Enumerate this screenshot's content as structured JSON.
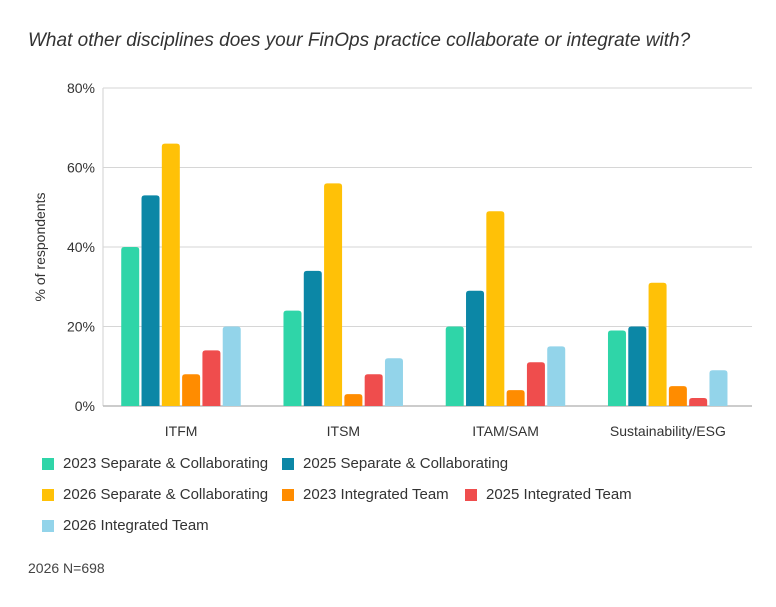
{
  "chart_data": {
    "type": "bar",
    "title": "What other disciplines does your FinOps practice collaborate or integrate with?",
    "xlabel": "",
    "ylabel": "% of respondents",
    "ylim": [
      0,
      80
    ],
    "yticks": [
      "0%",
      "20%",
      "40%",
      "60%",
      "80%"
    ],
    "grid": true,
    "legend_position": "bottom",
    "categories": [
      "ITFM",
      "ITSM",
      "ITAM/SAM",
      "Sustainability/ESG"
    ],
    "series": [
      {
        "name": "2023 Separate & Collaborating",
        "color": "#2fd5a8",
        "values": [
          40,
          24,
          20,
          19
        ]
      },
      {
        "name": "2025 Separate & Collaborating",
        "color": "#0c87a6",
        "values": [
          53,
          34,
          29,
          20
        ]
      },
      {
        "name": "2026 Separate & Collaborating",
        "color": "#ffc107",
        "values": [
          66,
          56,
          49,
          31
        ]
      },
      {
        "name": "2023 Integrated Team",
        "color": "#ff8c00",
        "values": [
          8,
          3,
          4,
          5
        ]
      },
      {
        "name": "2025 Integrated Team",
        "color": "#ef4d4d",
        "values": [
          14,
          8,
          11,
          2
        ]
      },
      {
        "name": "2026 Integrated Team",
        "color": "#93d4ea",
        "values": [
          20,
          12,
          15,
          9
        ]
      }
    ],
    "note": "2026 N=698"
  }
}
